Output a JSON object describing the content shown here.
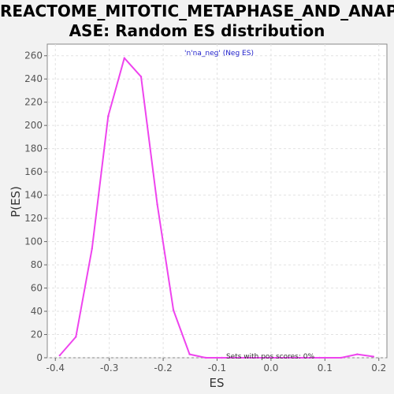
{
  "title_line1": "REACTOME_MITOTIC_METAPHASE_AND_ANAPH",
  "title_line2": "ASE: Random ES distribution",
  "chart_data": {
    "type": "line",
    "xlabel": "ES",
    "ylabel": "P(ES)",
    "xlim": [
      -0.415,
      0.215
    ],
    "ylim": [
      0,
      270
    ],
    "xticks": [
      -0.4,
      -0.3,
      -0.2,
      -0.1,
      0.0,
      0.1,
      0.2
    ],
    "xtick_labels": [
      "-0.4",
      "-0.3",
      "-0.2",
      "-0.1",
      "0.0",
      "0.1",
      "0.2"
    ],
    "yticks": [
      0,
      20,
      40,
      60,
      80,
      100,
      120,
      140,
      160,
      180,
      200,
      220,
      240,
      260
    ],
    "grid": true,
    "series": [
      {
        "name": "'n'na_neg' (Neg ES)",
        "color": "#ee44ee",
        "x": [
          -0.392,
          -0.362,
          -0.332,
          -0.302,
          -0.272,
          -0.241,
          -0.211,
          -0.181,
          -0.151,
          -0.121,
          -0.091,
          -0.061,
          -0.031,
          -0.001,
          0.029,
          0.06,
          0.09,
          0.13,
          0.16,
          0.19
        ],
        "y": [
          2,
          18,
          94,
          208,
          258,
          242,
          132,
          41,
          3,
          0,
          0,
          0,
          0,
          0,
          0,
          0,
          0,
          0,
          3,
          1
        ]
      }
    ],
    "legend_text": "'n'na_neg' (Neg ES)",
    "annotation": "Sets with pos scores: 0%"
  }
}
